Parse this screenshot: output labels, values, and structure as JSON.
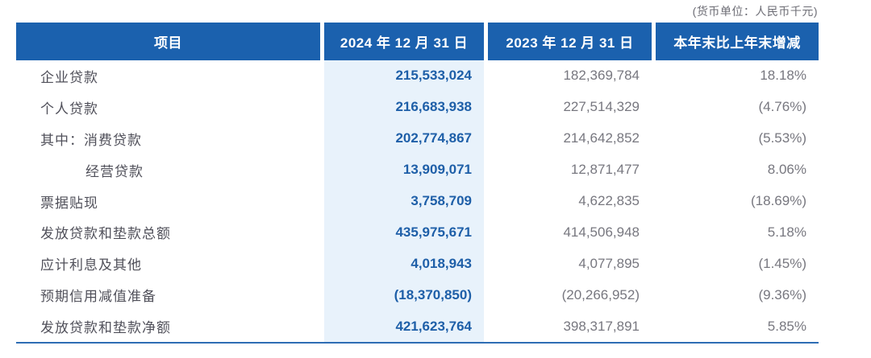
{
  "unit_note": "(货币单位：人民币千元)",
  "table": {
    "columns": [
      "项目",
      "2024 年 12 月 31 日",
      "2023 年 12 月 31 日",
      "本年末比上年末增减"
    ],
    "rows": [
      {
        "label": "企业贷款",
        "indent": 0,
        "v2024": "215,533,024",
        "v2023": "182,369,784",
        "change": "18.18%"
      },
      {
        "label": "个人贷款",
        "indent": 0,
        "v2024": "216,683,938",
        "v2023": "227,514,329",
        "change": "(4.76%)"
      },
      {
        "label": "其中：消费贷款",
        "indent": 0,
        "v2024": "202,774,867",
        "v2023": "214,642,852",
        "change": "(5.53%)"
      },
      {
        "label": "经营贷款",
        "indent": 1,
        "v2024": "13,909,071",
        "v2023": "12,871,477",
        "change": "8.06%"
      },
      {
        "label": "票据贴现",
        "indent": 0,
        "v2024": "3,758,709",
        "v2023": "4,622,835",
        "change": "(18.69%)"
      },
      {
        "label": "发放贷款和垫款总额",
        "indent": 0,
        "v2024": "435,975,671",
        "v2023": "414,506,948",
        "change": "5.18%"
      },
      {
        "label": "应计利息及其他",
        "indent": 0,
        "v2024": "4,018,943",
        "v2023": "4,077,895",
        "change": "(1.45%)"
      },
      {
        "label": "预期信用减值准备",
        "indent": 0,
        "v2024": "(18,370,850)",
        "v2023": "(20,266,952)",
        "change": "(9.36%)"
      },
      {
        "label": "发放贷款和垫款净额",
        "indent": 0,
        "v2024": "421,623,764",
        "v2023": "398,317,891",
        "change": "5.85%"
      }
    ]
  },
  "colors": {
    "header_bg": "#1b61ae",
    "highlight_col_bg": "#e8f2fb",
    "value_2024_color": "#1e5fa8",
    "muted_text": "#77777f",
    "label_text": "#50505a",
    "bottom_border": "#2e6db4",
    "page_bg": "#ffffff"
  }
}
